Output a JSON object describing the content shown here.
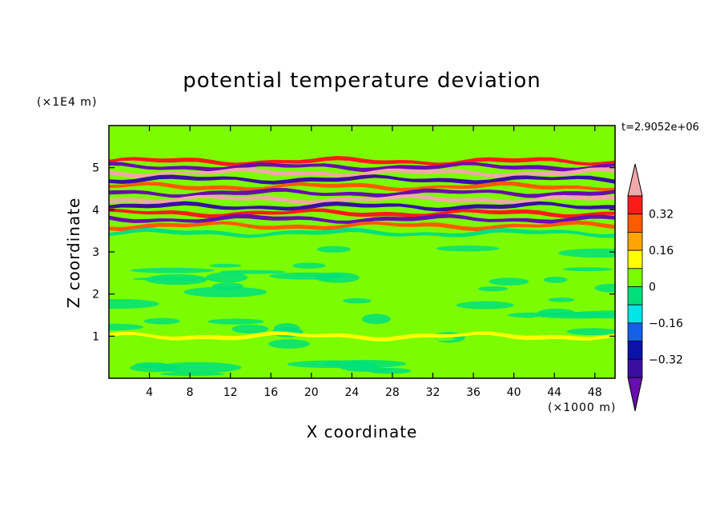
{
  "chart_data": {
    "type": "heatmap",
    "title": "potential temperature deviation",
    "xlabel": "X coordinate",
    "ylabel": "Z coordinate",
    "x_unit": "(×1000 m)",
    "y_unit": "(×1E4 m)",
    "time_label": "t=2.9052e+06",
    "xlim": [
      0,
      50
    ],
    "ylim": [
      0,
      6
    ],
    "x_ticks": [
      "4",
      "8",
      "12",
      "16",
      "20",
      "24",
      "28",
      "32",
      "36",
      "40",
      "44",
      "48"
    ],
    "y_ticks": [
      "1",
      "2",
      "3",
      "4",
      "5"
    ],
    "colorbar": {
      "levels": [
        -0.48,
        -0.4,
        -0.32,
        -0.24,
        -0.16,
        -0.08,
        0,
        0.08,
        0.16,
        0.24,
        0.32,
        0.4
      ],
      "tick_labels": [
        "0.32",
        "0.16",
        "0",
        "−0.16",
        "−0.32"
      ],
      "colors": [
        "#6a0dad",
        "#3a0fa0",
        "#0a12a8",
        "#1560e8",
        "#00e5e5",
        "#00e07a",
        "#7cfc00",
        "#ffff00",
        "#ffa500",
        "#ff5a00",
        "#ff1a1a",
        "#f0a8a8"
      ],
      "extend": "both"
    },
    "background_color": "#7cfc00",
    "bands": [
      {
        "z_center": 5.15,
        "value": 0.35
      },
      {
        "z_center": 5.02,
        "value": -0.45
      },
      {
        "z_center": 4.88,
        "value": 0.45
      },
      {
        "z_center": 4.72,
        "value": -0.4
      },
      {
        "z_center": 4.55,
        "value": 0.3
      },
      {
        "z_center": 4.4,
        "value": -0.45
      },
      {
        "z_center": 4.25,
        "value": 0.4
      },
      {
        "z_center": 4.08,
        "value": -0.4
      },
      {
        "z_center": 3.92,
        "value": 0.35
      },
      {
        "z_center": 3.78,
        "value": -0.45
      },
      {
        "z_center": 3.62,
        "value": 0.3
      },
      {
        "z_center": 3.45,
        "value": -0.08
      },
      {
        "z_center": 1.0,
        "value": 0.12
      }
    ]
  }
}
